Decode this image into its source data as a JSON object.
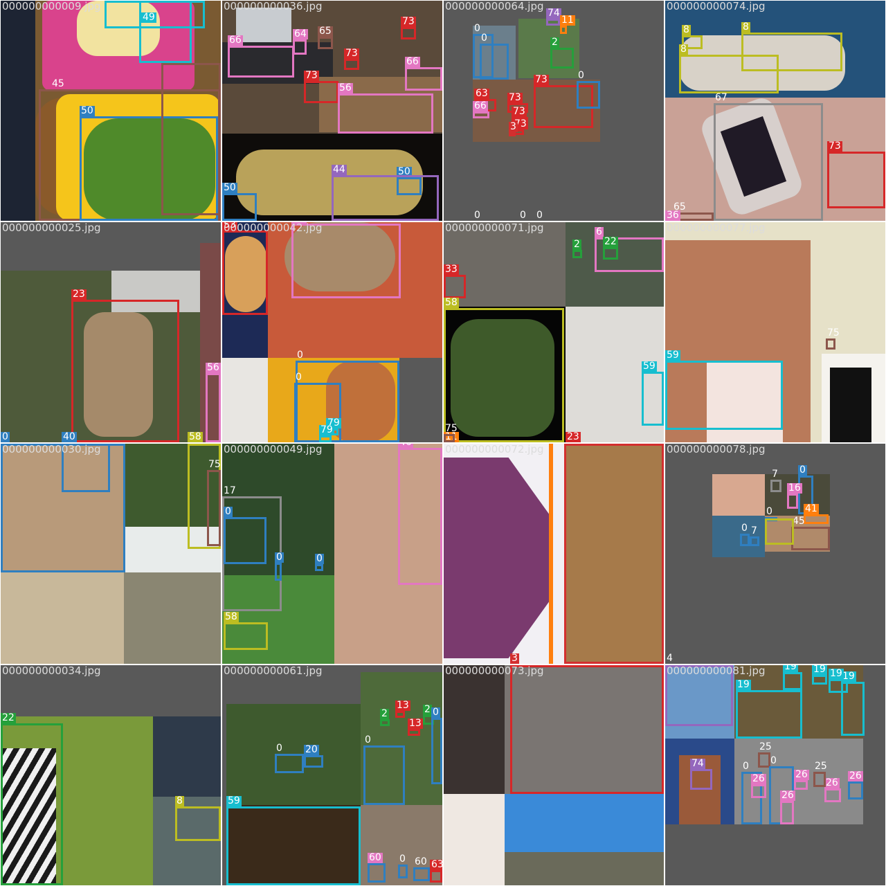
{
  "class_colors": {
    "0": "#2f7fc0",
    "2": "#25a03b",
    "3": "#d32f2f",
    "4": "#9467bd",
    "7": "#8c8c8c",
    "8": "#bcbd22",
    "11": "#ff7f0e",
    "13": "#d62728",
    "16": "#e377c2",
    "17": "#8c8c8c",
    "19": "#17becf",
    "20": "#2f7fc0",
    "22": "#25a03b",
    "23": "#d62728",
    "25": "#8c564b",
    "26": "#e377c2",
    "33": "#d62728",
    "36": "#e377c2",
    "40": "#2f7fc0",
    "41": "#ff7f0e",
    "44": "#9467bd",
    "45": "#8c564b",
    "46": "#e377c2",
    "49": "#17becf",
    "50": "#2f7fc0",
    "56": "#e377c2",
    "58": "#bcbd22",
    "59": "#17becf",
    "60": "#2f7fc0",
    "63": "#d62728",
    "64": "#e377c2",
    "65": "#8c564b",
    "66": "#e377c2",
    "67": "#8c8c8c",
    "73": "#d62728",
    "74": "#9467bd",
    "75": "#8c564b",
    "79": "#17becf"
  },
  "tiles": [
    {
      "file": "000000000009.jpg",
      "boxes": [
        {
          "label": "49"
        },
        {
          "label": "45"
        },
        {
          "label": "50"
        }
      ]
    },
    {
      "file": "000000000036.jpg",
      "boxes": [
        {
          "label": "66"
        },
        {
          "label": "64"
        },
        {
          "label": "65"
        },
        {
          "label": "73"
        },
        {
          "label": "73"
        },
        {
          "label": "66"
        },
        {
          "label": "73"
        },
        {
          "label": "56"
        },
        {
          "label": "50"
        },
        {
          "label": "44"
        },
        {
          "label": "50"
        }
      ]
    },
    {
      "file": "000000000064.jpg",
      "boxes": [
        {
          "label": "74"
        },
        {
          "label": "11"
        },
        {
          "label": "0"
        },
        {
          "label": "0"
        },
        {
          "label": "2"
        },
        {
          "label": "73"
        },
        {
          "label": "0"
        },
        {
          "label": "63"
        },
        {
          "label": "66"
        },
        {
          "label": "73"
        },
        {
          "label": "73"
        },
        {
          "label": "73"
        },
        {
          "label": "3"
        },
        {
          "label": "0"
        },
        {
          "label": "0"
        },
        {
          "label": "0"
        }
      ]
    },
    {
      "file": "000000000074.jpg",
      "boxes": [
        {
          "label": "8"
        },
        {
          "label": "8"
        },
        {
          "label": "8"
        },
        {
          "label": "67"
        },
        {
          "label": "73"
        },
        {
          "label": "65"
        },
        {
          "label": "36"
        }
      ]
    },
    {
      "file": "000000000025.jpg",
      "boxes": [
        {
          "label": "23"
        },
        {
          "label": "56"
        },
        {
          "label": "40"
        },
        {
          "label": "58"
        },
        {
          "label": "0"
        }
      ]
    },
    {
      "file": "000000000042.jpg",
      "boxes": [
        {
          "label": "53"
        },
        {
          "label": "16"
        },
        {
          "label": "0"
        },
        {
          "label": "0"
        },
        {
          "label": "79"
        },
        {
          "label": "79"
        }
      ]
    },
    {
      "file": "000000000071.jpg",
      "boxes": [
        {
          "label": "33"
        },
        {
          "label": "58"
        },
        {
          "label": "6"
        },
        {
          "label": "22"
        },
        {
          "label": "2"
        },
        {
          "label": "59"
        },
        {
          "label": "11"
        },
        {
          "label": "23"
        },
        {
          "label": "75"
        }
      ]
    },
    {
      "file": "000000000077.jpg",
      "boxes": [
        {
          "label": "75"
        },
        {
          "label": "59"
        }
      ]
    },
    {
      "file": "000000000030.jpg",
      "boxes": [
        {
          "label": "75"
        }
      ]
    },
    {
      "file": "000000000049.jpg",
      "boxes": [
        {
          "label": "46"
        },
        {
          "label": "17"
        },
        {
          "label": "0"
        },
        {
          "label": "0"
        },
        {
          "label": "0"
        },
        {
          "label": "58"
        }
      ]
    },
    {
      "file": "000000000072.jpg",
      "boxes": [
        {
          "label": "3"
        }
      ]
    },
    {
      "file": "000000000078.jpg",
      "boxes": [
        {
          "label": "7"
        },
        {
          "label": "0"
        },
        {
          "label": "16"
        },
        {
          "label": "41"
        },
        {
          "label": "0"
        },
        {
          "label": "0"
        },
        {
          "label": "7"
        },
        {
          "label": "45"
        },
        {
          "label": "4"
        }
      ]
    },
    {
      "file": "000000000034.jpg",
      "boxes": [
        {
          "label": "22"
        },
        {
          "label": "8"
        }
      ]
    },
    {
      "file": "000000000061.jpg",
      "boxes": [
        {
          "label": "2"
        },
        {
          "label": "13"
        },
        {
          "label": "2"
        },
        {
          "label": "13"
        },
        {
          "label": "0"
        },
        {
          "label": "0"
        },
        {
          "label": "20"
        },
        {
          "label": "0"
        },
        {
          "label": "59"
        },
        {
          "label": "60"
        },
        {
          "label": "60"
        },
        {
          "label": "63"
        },
        {
          "label": "0"
        }
      ]
    },
    {
      "file": "000000000073.jpg",
      "boxes": []
    },
    {
      "file": "000000000081.jpg",
      "boxes": [
        {
          "label": "19"
        },
        {
          "label": "19"
        },
        {
          "label": "19"
        },
        {
          "label": "19"
        },
        {
          "label": "19"
        },
        {
          "label": "74"
        },
        {
          "label": "25"
        },
        {
          "label": "0"
        },
        {
          "label": "0"
        },
        {
          "label": "26"
        },
        {
          "label": "26"
        },
        {
          "label": "26"
        },
        {
          "label": "26"
        },
        {
          "label": "25"
        },
        {
          "label": "26"
        }
      ]
    }
  ]
}
